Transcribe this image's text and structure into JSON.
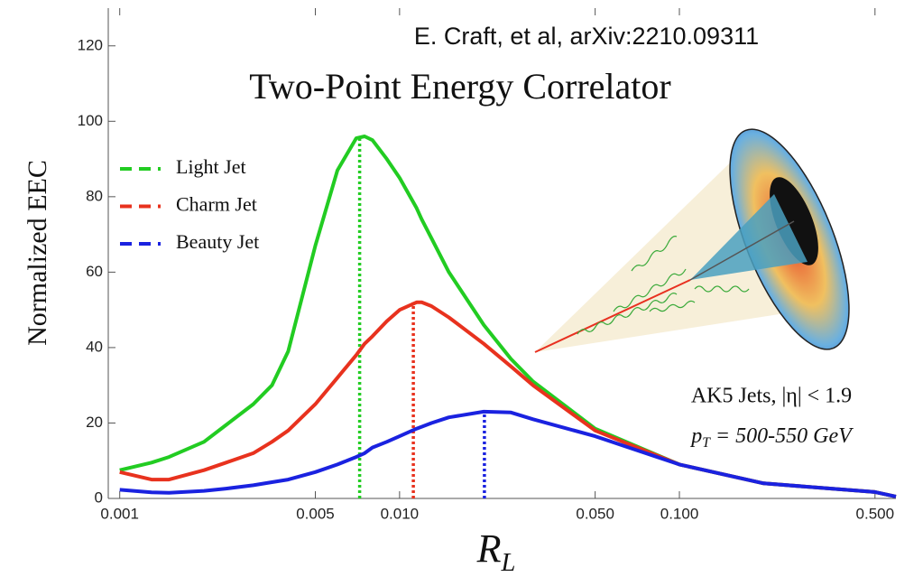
{
  "chart_data": {
    "type": "line",
    "title": "Two-Point Energy Correlator",
    "citation": "E. Craft, et al, arXiv:2210.09311",
    "annotations": [
      "AK5 Jets, |η| < 1.9",
      "p_T = 500-550 GeV"
    ],
    "xlabel": "R_L",
    "ylabel": "Normalized EEC",
    "xscale": "log",
    "xlim": [
      0.00091,
      0.594
    ],
    "ylim": [
      0,
      130
    ],
    "xticks": [
      0.001,
      0.005,
      {
        "value": 0.01,
        "label": "0.010"
      },
      {
        "value": 0.05,
        "label": "0.050"
      },
      {
        "value": 0.1,
        "label": "0.100"
      },
      {
        "value": 0.5,
        "label": "0.500"
      }
    ],
    "yticks": [
      0,
      20,
      40,
      60,
      80,
      100,
      120
    ],
    "legend": "top-left",
    "x": [
      0.001,
      0.0013,
      0.0015,
      0.002,
      0.0024,
      0.003,
      0.0035,
      0.004,
      0.005,
      0.006,
      0.007,
      0.0075,
      0.008,
      0.009,
      0.01,
      0.0115,
      0.012,
      0.013,
      0.015,
      0.02,
      0.025,
      0.03,
      0.05,
      0.1,
      0.2,
      0.5,
      0.594
    ],
    "series": [
      {
        "name": "Light Jet",
        "color": "#22cc22",
        "peak_x": 0.0072,
        "peak_y": 96,
        "values": [
          7.5,
          9.5,
          11,
          15,
          19.5,
          25,
          30,
          39,
          67,
          87,
          95.5,
          96,
          95,
          90,
          85,
          77,
          74,
          69,
          60,
          46,
          37,
          31,
          18.5,
          9,
          4,
          1.7,
          0.5
        ]
      },
      {
        "name": "Charm Jet",
        "color": "#e8321e",
        "peak_x": 0.0112,
        "peak_y": 52,
        "values": [
          7,
          5,
          5,
          7.5,
          9.5,
          12,
          15,
          18,
          25,
          32,
          38,
          41,
          43,
          47,
          50,
          52,
          52,
          51,
          48,
          41,
          35,
          30,
          18,
          9,
          4,
          1.7,
          0.5
        ]
      },
      {
        "name": "Beauty Jet",
        "color": "#1a22e0",
        "peak_x": 0.0201,
        "peak_y": 23,
        "values": [
          2.3,
          1.6,
          1.5,
          2,
          2.6,
          3.5,
          4.3,
          5,
          7,
          9,
          11,
          12,
          13.5,
          15,
          16.5,
          18.5,
          19,
          20,
          21.5,
          23,
          22.8,
          21,
          16.5,
          9,
          4,
          1.7,
          0.5
        ]
      }
    ]
  }
}
